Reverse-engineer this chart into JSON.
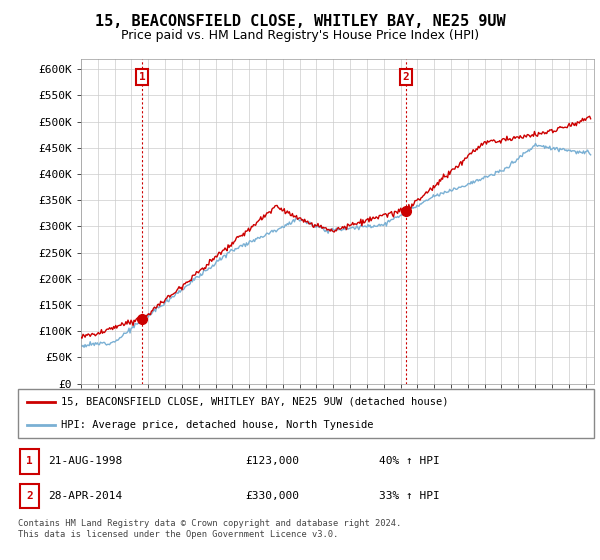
{
  "title": "15, BEACONSFIELD CLOSE, WHITLEY BAY, NE25 9UW",
  "subtitle": "Price paid vs. HM Land Registry's House Price Index (HPI)",
  "ylim": [
    0,
    620000
  ],
  "yticks": [
    0,
    50000,
    100000,
    150000,
    200000,
    250000,
    300000,
    350000,
    400000,
    450000,
    500000,
    550000,
    600000
  ],
  "ytick_labels": [
    "£0",
    "£50K",
    "£100K",
    "£150K",
    "£200K",
    "£250K",
    "£300K",
    "£350K",
    "£400K",
    "£450K",
    "£500K",
    "£550K",
    "£600K"
  ],
  "xlim_start": 1995.0,
  "xlim_end": 2025.5,
  "sale1_year": 1998.64,
  "sale1_price": 123000,
  "sale1_label": "1",
  "sale2_year": 2014.33,
  "sale2_price": 330000,
  "sale2_label": "2",
  "red_line_color": "#cc0000",
  "blue_line_color": "#7ab0d4",
  "sale_dot_color": "#cc0000",
  "sale_marker_box_color": "#cc0000",
  "legend_entry1": "15, BEACONSFIELD CLOSE, WHITLEY BAY, NE25 9UW (detached house)",
  "legend_entry2": "HPI: Average price, detached house, North Tyneside",
  "table_row1": [
    "1",
    "21-AUG-1998",
    "£123,000",
    "40% ↑ HPI"
  ],
  "table_row2": [
    "2",
    "28-APR-2014",
    "£330,000",
    "33% ↑ HPI"
  ],
  "footer": "Contains HM Land Registry data © Crown copyright and database right 2024.\nThis data is licensed under the Open Government Licence v3.0.",
  "bg_color": "#ffffff",
  "grid_color": "#cccccc",
  "title_fontsize": 11,
  "subtitle_fontsize": 9,
  "axis_fontsize": 8
}
